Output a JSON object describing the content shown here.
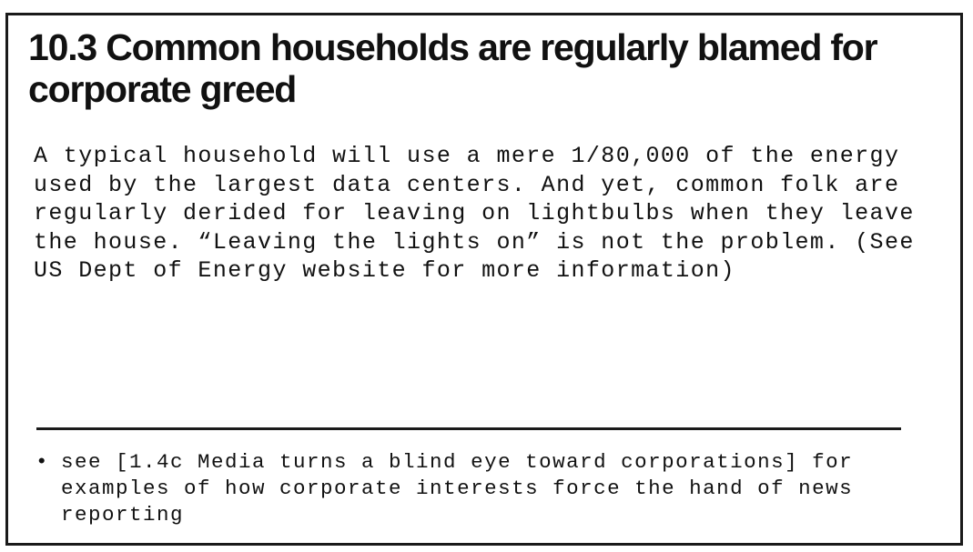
{
  "card": {
    "title": "10.3 Common households are regularly blamed for corporate greed",
    "body": "A typical household will use a mere 1/80,000 of the energy used by the largest data centers. And yet, common folk are regularly derided for leaving on lightbulbs when they leave the house. “Leaving the lights on” is not the problem. (See US Dept of Energy website for more information)",
    "footnotes": [
      {
        "bullet": "•",
        "text": "see [1.4c Media turns a blind eye toward corporations] for examples of how corporate interests force the hand of news reporting"
      }
    ]
  }
}
